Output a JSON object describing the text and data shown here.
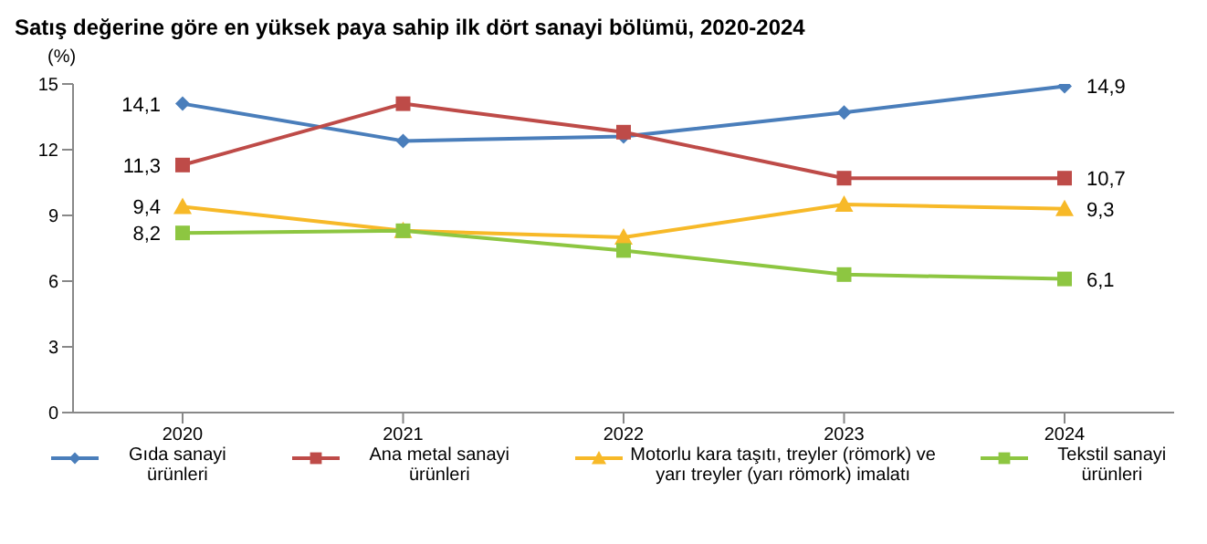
{
  "chart_data": {
    "type": "line",
    "title": "Satış değerine göre en yüksek paya sahip ilk dört sanayi bölümü, 2020-2024",
    "ylabel": "(%)",
    "categories": [
      "2020",
      "2021",
      "2022",
      "2023",
      "2024"
    ],
    "ylim": [
      0,
      15
    ],
    "yticks": [
      0,
      3,
      6,
      9,
      12,
      15
    ],
    "grid": false,
    "legend": "bottom",
    "series": [
      {
        "name": "Gıda sanayi ürünleri",
        "color": "#4a7ebb",
        "marker": "diamond",
        "values": [
          14.1,
          12.4,
          12.6,
          13.7,
          14.9
        ],
        "value_labels": [
          "14,1",
          null,
          null,
          null,
          "14,9"
        ]
      },
      {
        "name": "Ana metal sanayi ürünleri",
        "color": "#be4b48",
        "marker": "square",
        "values": [
          11.3,
          14.1,
          12.8,
          10.7,
          10.7
        ],
        "value_labels": [
          "11,3",
          null,
          null,
          null,
          "10,7"
        ]
      },
      {
        "name": "Motorlu kara taşıtı, treyler (römork) ve yarı treyler (yarı römork) imalatı",
        "color": "#f7b928",
        "marker": "triangle",
        "values": [
          9.4,
          8.3,
          8.0,
          9.5,
          9.3
        ],
        "value_labels": [
          "9,4",
          null,
          null,
          null,
          "9,3"
        ]
      },
      {
        "name": "Tekstil sanayi ürünleri",
        "color": "#8dc641",
        "marker": "square",
        "values": [
          8.2,
          8.3,
          7.4,
          6.3,
          6.1
        ],
        "value_labels": [
          "8,2",
          null,
          null,
          null,
          "6,1"
        ]
      }
    ]
  }
}
